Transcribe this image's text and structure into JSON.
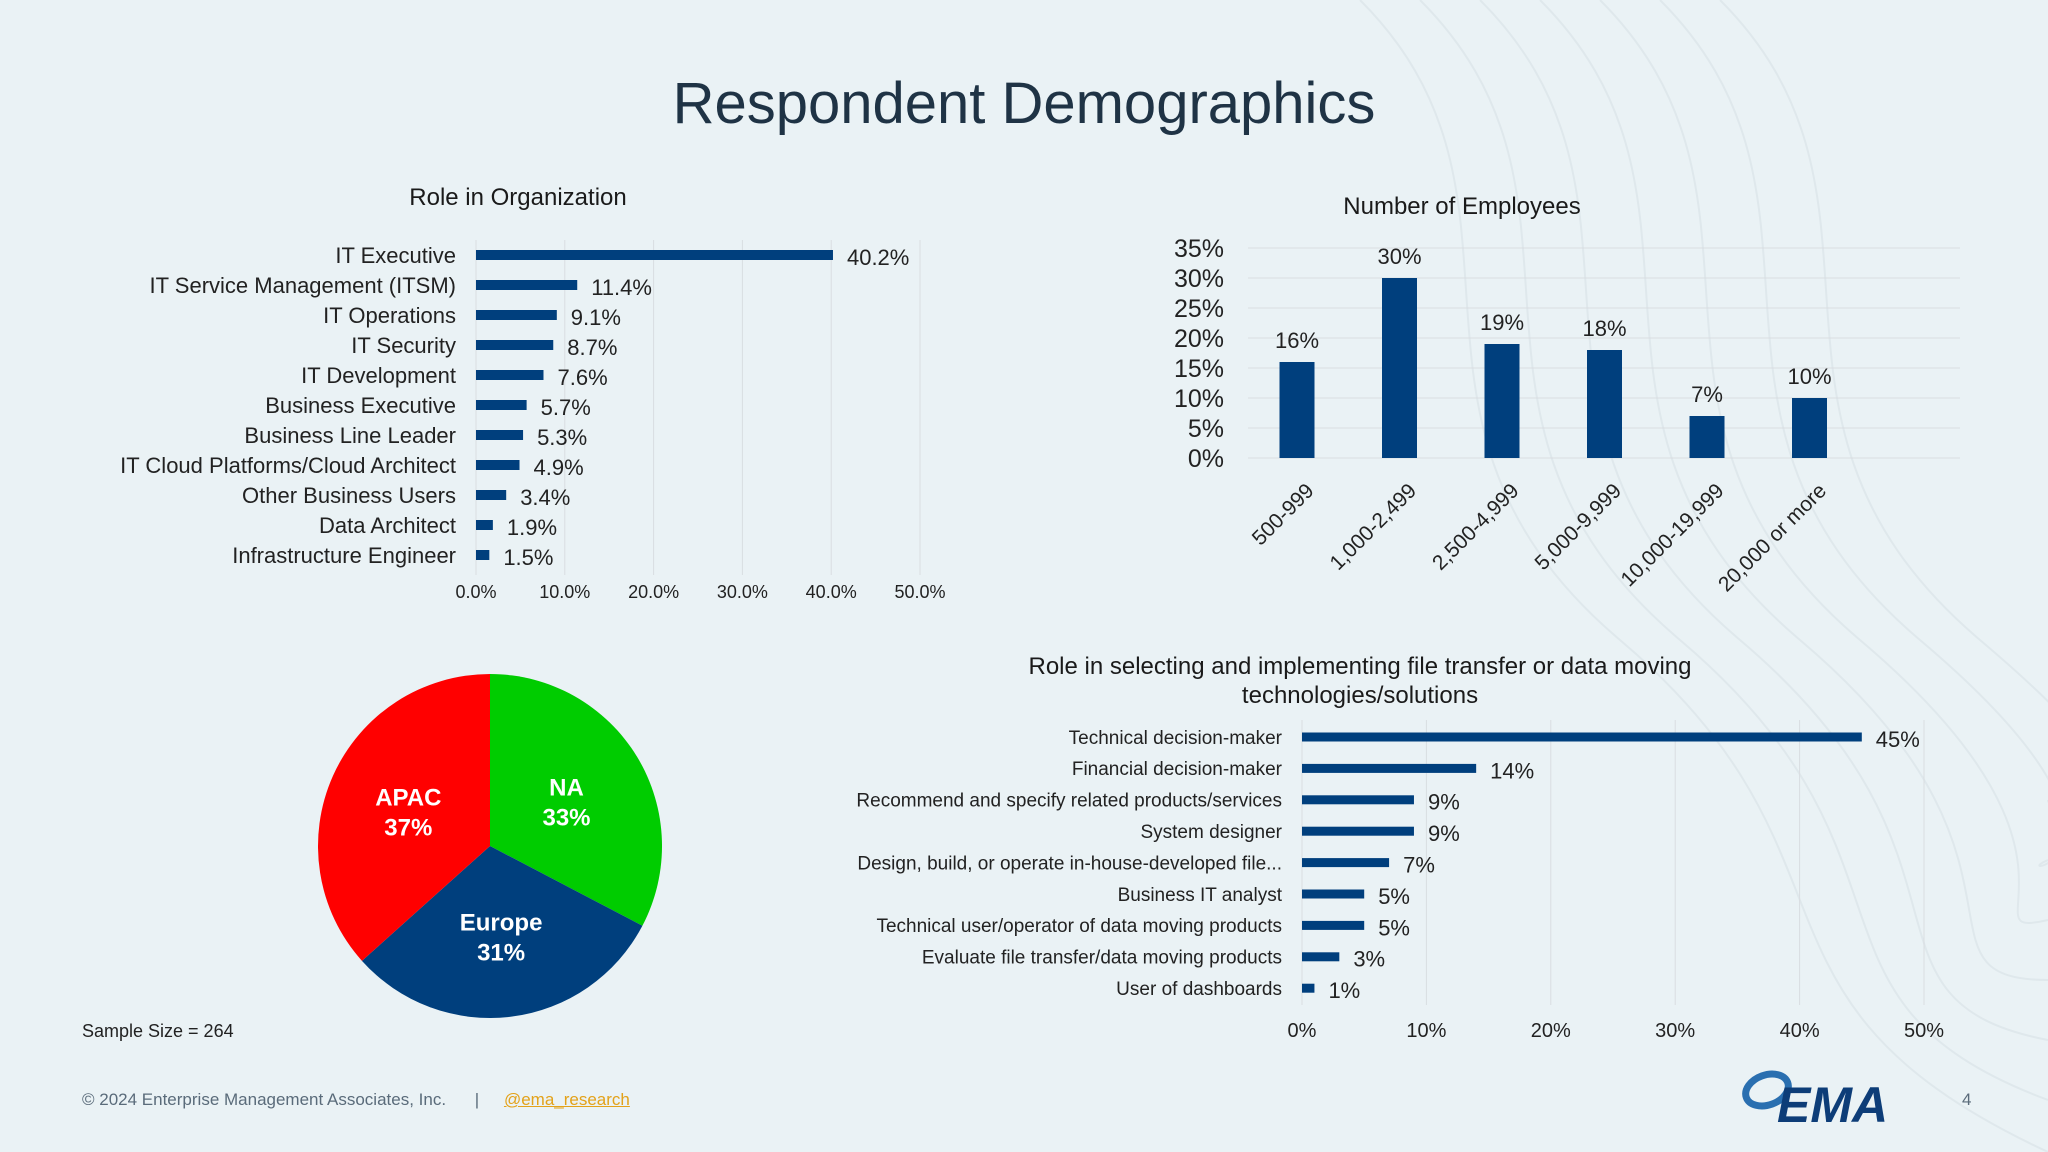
{
  "page": {
    "title": "Respondent Demographics",
    "sample_size": "Sample Size = 264",
    "footer": {
      "copyright": "© 2024 Enterprise Management Associates, Inc.",
      "separator": "|",
      "handle": "@ema_research"
    },
    "page_number": "4",
    "logo_text": "EMA"
  },
  "colors": {
    "bar": "#003f7d",
    "grid": "#d9dde1",
    "pie_na": "#00cc00",
    "pie_europe": "#003f7d",
    "pie_apac": "#ff0000"
  },
  "chart_data": [
    {
      "id": "role",
      "type": "bar",
      "orientation": "horizontal",
      "title": "Role in Organization",
      "categories": [
        "IT Executive",
        "IT Service Management (ITSM)",
        "IT Operations",
        "IT Security",
        "IT Development",
        "Business Executive",
        "Business Line Leader",
        "IT Cloud Platforms/Cloud Architect",
        "Other Business Users",
        "Data Architect",
        "Infrastructure Engineer"
      ],
      "values": [
        40.2,
        11.4,
        9.1,
        8.7,
        7.6,
        5.7,
        5.3,
        4.9,
        3.4,
        1.9,
        1.5
      ],
      "data_labels": [
        "40.2%",
        "11.4%",
        "9.1%",
        "8.7%",
        "7.6%",
        "5.7%",
        "5.3%",
        "4.9%",
        "3.4%",
        "1.9%",
        "1.5%"
      ],
      "xlim": [
        0,
        50
      ],
      "x_ticks": [
        "0.0%",
        "10.0%",
        "20.0%",
        "30.0%",
        "40.0%",
        "50.0%"
      ],
      "grid": true
    },
    {
      "id": "employees",
      "type": "bar",
      "orientation": "vertical",
      "title": "Number of Employees",
      "categories": [
        "500-999",
        "1,000-2,499",
        "2,500-4,999",
        "5,000-9,999",
        "10,000-19,999",
        "20,000 or more"
      ],
      "values": [
        16,
        30,
        19,
        18,
        7,
        10
      ],
      "data_labels": [
        "16%",
        "30%",
        "19%",
        "18%",
        "7%",
        "10%"
      ],
      "ylim": [
        0,
        35
      ],
      "y_ticks": [
        "0%",
        "5%",
        "10%",
        "15%",
        "20%",
        "25%",
        "30%",
        "35%"
      ],
      "grid": true
    },
    {
      "id": "region",
      "type": "pie",
      "labels": [
        "NA",
        "Europe",
        "APAC"
      ],
      "values": [
        33,
        31,
        37
      ],
      "value_labels": [
        "33%",
        "31%",
        "37%"
      ]
    },
    {
      "id": "selecting",
      "type": "bar",
      "orientation": "horizontal",
      "title": "Role in selecting and implementing file transfer or data moving technologies/solutions",
      "title_lines": [
        "Role in selecting and implementing file transfer or data moving",
        "technologies/solutions"
      ],
      "categories": [
        "Technical decision-maker",
        "Financial decision-maker",
        "Recommend and specify related products/services",
        "System designer",
        "Design, build, or operate in-house-developed file...",
        "Business IT analyst",
        "Technical user/operator of data moving products",
        "Evaluate file transfer/data moving products",
        "User of dashboards"
      ],
      "values": [
        45,
        14,
        9,
        9,
        7,
        5,
        5,
        3,
        1
      ],
      "data_labels": [
        "45%",
        "14%",
        "9%",
        "9%",
        "7%",
        "5%",
        "5%",
        "3%",
        "1%"
      ],
      "xlim": [
        0,
        50
      ],
      "x_ticks": [
        "0%",
        "10%",
        "20%",
        "30%",
        "40%",
        "50%"
      ],
      "grid": true
    }
  ]
}
